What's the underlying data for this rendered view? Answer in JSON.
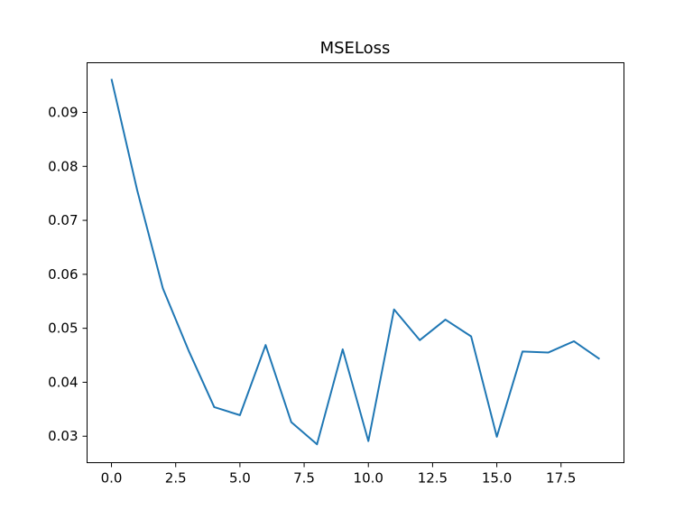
{
  "chart_data": {
    "type": "line",
    "title": "MSELoss",
    "xlabel": "",
    "ylabel": "",
    "xlim": [
      -0.95,
      19.95
    ],
    "ylim": [
      0.0251,
      0.0992
    ],
    "grid": false,
    "x_ticks": [
      0.0,
      2.5,
      5.0,
      7.5,
      10.0,
      12.5,
      15.0,
      17.5
    ],
    "x_tick_labels": [
      "0.0",
      "2.5",
      "5.0",
      "7.5",
      "10.0",
      "12.5",
      "15.0",
      "17.5"
    ],
    "y_ticks": [
      0.03,
      0.04,
      0.05,
      0.06,
      0.07,
      0.08,
      0.09
    ],
    "y_tick_labels": [
      "0.03",
      "0.04",
      "0.05",
      "0.06",
      "0.07",
      "0.08",
      "0.09"
    ],
    "series": [
      {
        "color": "#1f77b4",
        "x": [
          0,
          1,
          2,
          3,
          4,
          5,
          6,
          7,
          8,
          9,
          10,
          11,
          12,
          13,
          14,
          15,
          16,
          17,
          18,
          19
        ],
        "values": [
          0.0962,
          0.0756,
          0.0574,
          0.0459,
          0.0354,
          0.0339,
          0.0469,
          0.0326,
          0.0285,
          0.0461,
          0.0291,
          0.0535,
          0.0478,
          0.0516,
          0.0485,
          0.0299,
          0.0457,
          0.0455,
          0.0476,
          0.0443
        ]
      }
    ]
  }
}
